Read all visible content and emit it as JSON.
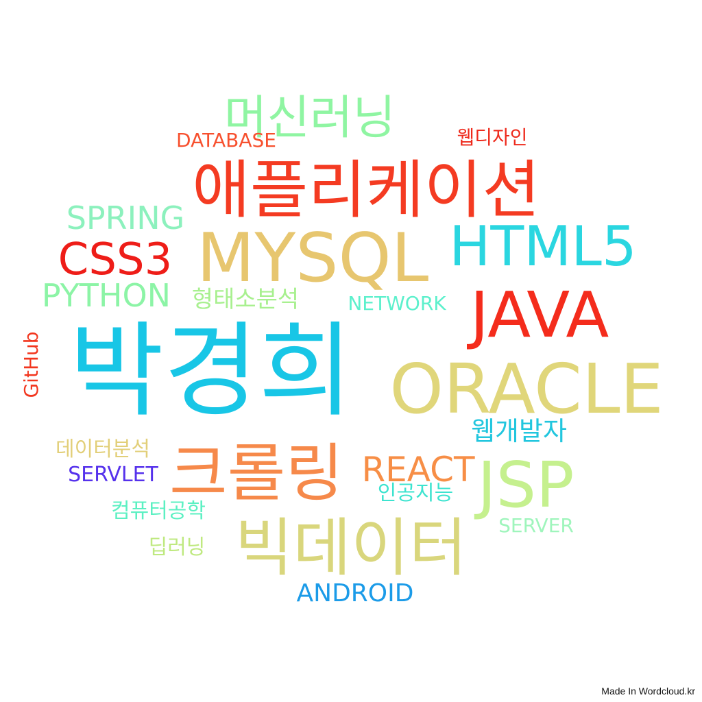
{
  "words": [
    {
      "text": "머신러닝",
      "color": "#8ff5a2"
    },
    {
      "text": "DATABASE",
      "color": "#f7502e"
    },
    {
      "text": "웹디자인",
      "color": "#ee2a1c"
    },
    {
      "text": "애플리케이션",
      "color": "#f43b22"
    },
    {
      "text": "SPRING",
      "color": "#8cf1bd"
    },
    {
      "text": "MYSQL",
      "color": "#e7c66f"
    },
    {
      "text": "HTML5",
      "color": "#2ad6e0"
    },
    {
      "text": "CSS3",
      "color": "#ee1d18"
    },
    {
      "text": "PYTHON",
      "color": "#8cf4a6"
    },
    {
      "text": "형태소분석",
      "color": "#a8f08f"
    },
    {
      "text": "NETWORK",
      "color": "#5cf0cc"
    },
    {
      "text": "JAVA",
      "color": "#f42c1c"
    },
    {
      "text": "박경희",
      "color": "#18c6e6"
    },
    {
      "text": "ORACLE",
      "color": "#e0d67a"
    },
    {
      "text": "GitHub",
      "color": "#f2361e"
    },
    {
      "text": "웹개발자",
      "color": "#21c6de"
    },
    {
      "text": "데이터분석",
      "color": "#e2cf79"
    },
    {
      "text": "REACT",
      "color": "#f78e46"
    },
    {
      "text": "크롤링",
      "color": "#f6894a"
    },
    {
      "text": "JSP",
      "color": "#c5f08e"
    },
    {
      "text": "SERVLET",
      "color": "#5531ec"
    },
    {
      "text": "인공지능",
      "color": "#3ce3cf"
    },
    {
      "text": "컴퓨터공학",
      "color": "#5bf0c2"
    },
    {
      "text": "SERVER",
      "color": "#9ff5bc"
    },
    {
      "text": "딥러닝",
      "color": "#bfe980"
    },
    {
      "text": "빅데이터",
      "color": "#d9d67c"
    },
    {
      "text": "ANDROID",
      "color": "#1b9be8"
    }
  ],
  "credit": "Made In Wordcloud.kr"
}
